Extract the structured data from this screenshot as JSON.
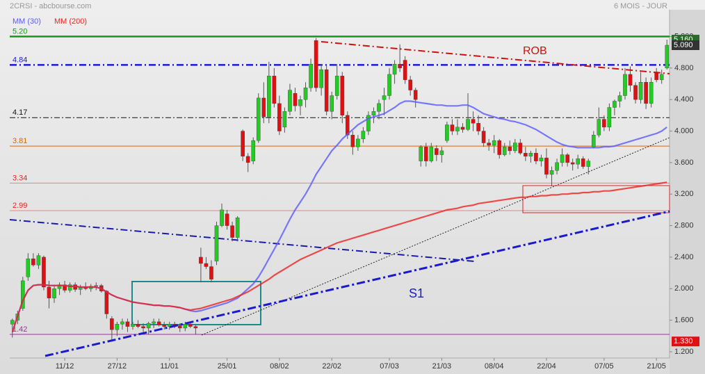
{
  "chart_data": {
    "type": "candlestick",
    "title": "2CRSI - abcbourse.com",
    "subtitle": "6 MOIS - JOUR",
    "up_color": "#22cc22",
    "down_color": "#dd1111",
    "categories": [
      null,
      null,
      null,
      null,
      null,
      null,
      null,
      null,
      null,
      null,
      "11/12",
      null,
      null,
      null,
      null,
      null,
      null,
      null,
      null,
      null,
      "27/12",
      null,
      null,
      null,
      null,
      null,
      null,
      null,
      null,
      null,
      "11/01",
      null,
      null,
      null,
      null,
      null,
      null,
      null,
      null,
      null,
      null,
      "25/01",
      null,
      null,
      null,
      null,
      null,
      null,
      null,
      null,
      null,
      "08/02",
      null,
      null,
      null,
      null,
      null,
      null,
      null,
      null,
      null,
      "22/02",
      null,
      null,
      null,
      null,
      null,
      null,
      null,
      null,
      null,
      null,
      "07/03",
      null,
      null,
      null,
      null,
      null,
      null,
      null,
      null,
      null,
      "21/03",
      null,
      null,
      null,
      null,
      null,
      null,
      null,
      null,
      null,
      "08/04",
      null,
      null,
      null,
      null,
      null,
      null,
      null,
      null,
      null,
      "22/04",
      null,
      null,
      null,
      null,
      null,
      null,
      null,
      null,
      null,
      null,
      "07/05",
      null,
      null,
      null,
      null,
      null,
      null,
      null,
      null,
      null,
      "21/05",
      null,
      null
    ],
    "open": [
      1.55,
      1.6,
      1.75,
      2.15,
      2.38,
      2.3,
      2.4,
      2.02,
      1.88,
      2.0,
      2.05,
      1.98,
      2.05,
      1.99,
      2.02,
      2.0,
      2.03,
      2.04,
      1.97,
      1.62,
      1.48,
      1.55,
      1.58,
      1.52,
      1.55,
      1.52,
      1.5,
      1.56,
      1.58,
      1.54,
      1.52,
      1.55,
      1.53,
      1.5,
      1.55,
      1.52,
      2.4,
      2.32,
      2.28,
      2.35,
      2.8,
      2.95,
      2.8,
      2.65,
      4.0,
      3.68,
      3.62,
      3.88,
      4.42,
      4.18,
      4.7,
      4.35,
      4.05,
      4.25,
      4.48,
      4.32,
      4.4,
      4.55,
      5.15,
      4.55,
      4.78,
      4.25,
      4.45,
      4.7,
      4.2,
      3.95,
      3.8,
      3.9,
      4.0,
      4.2,
      4.25,
      4.4,
      4.45,
      4.72,
      4.85,
      4.9,
      4.65,
      4.52,
      3.62,
      3.8,
      3.62,
      3.78,
      3.7,
      3.88,
      4.08,
      4.0,
      4.05,
      4.02,
      4.15,
      4.1,
      4.0,
      3.85,
      3.82,
      3.88,
      3.7,
      3.8,
      3.75,
      3.85,
      3.72,
      3.68,
      3.72,
      3.62,
      3.66,
      3.45,
      3.5,
      3.6,
      3.7,
      3.6,
      3.58,
      3.65,
      3.55,
      3.8,
      3.95,
      4.15,
      4.05,
      4.3,
      4.38,
      4.45,
      4.72,
      4.58,
      4.4,
      4.62,
      4.35,
      4.75,
      4.65,
      4.8
    ],
    "high": [
      1.62,
      1.72,
      2.15,
      2.45,
      2.45,
      2.45,
      2.42,
      2.1,
      2.05,
      2.08,
      2.1,
      2.08,
      2.08,
      2.05,
      2.08,
      2.06,
      2.08,
      2.06,
      1.98,
      1.65,
      1.58,
      1.62,
      1.62,
      1.58,
      1.6,
      1.56,
      1.58,
      1.62,
      1.62,
      1.58,
      1.58,
      1.58,
      1.56,
      1.58,
      1.58,
      1.55,
      2.52,
      2.4,
      2.36,
      2.85,
      3.08,
      3.0,
      2.85,
      2.92,
      4.02,
      3.72,
      3.92,
      4.48,
      4.62,
      4.88,
      4.8,
      4.45,
      4.3,
      4.6,
      4.55,
      4.45,
      4.62,
      4.92,
      5.18,
      4.85,
      4.85,
      4.5,
      4.85,
      4.75,
      4.25,
      4.0,
      3.95,
      4.05,
      4.25,
      4.3,
      4.4,
      4.55,
      4.8,
      4.9,
      5.1,
      4.95,
      4.7,
      4.55,
      3.82,
      3.85,
      3.85,
      3.82,
      3.8,
      4.12,
      4.15,
      4.15,
      4.1,
      4.48,
      4.25,
      4.2,
      4.05,
      3.9,
      3.95,
      3.9,
      3.85,
      3.88,
      3.9,
      3.9,
      3.8,
      3.75,
      3.78,
      3.7,
      3.78,
      3.55,
      3.65,
      3.78,
      3.72,
      3.65,
      3.7,
      3.68,
      3.65,
      4.0,
      4.3,
      4.2,
      4.35,
      4.4,
      4.5,
      4.8,
      4.82,
      4.62,
      4.75,
      4.68,
      4.68,
      4.8,
      4.78,
      5.16
    ],
    "low": [
      1.38,
      1.55,
      1.72,
      2.1,
      2.28,
      2.25,
      1.98,
      1.75,
      1.82,
      1.92,
      1.95,
      1.95,
      1.96,
      1.92,
      1.98,
      1.96,
      1.98,
      1.95,
      1.62,
      1.33,
      1.4,
      1.48,
      1.45,
      1.48,
      1.5,
      1.45,
      1.42,
      1.5,
      1.52,
      1.48,
      1.48,
      1.5,
      1.45,
      1.46,
      1.5,
      1.42,
      2.08,
      2.25,
      2.08,
      2.3,
      2.78,
      2.75,
      2.6,
      2.6,
      3.62,
      3.48,
      3.58,
      3.85,
      4.1,
      4.1,
      4.3,
      3.95,
      3.98,
      4.2,
      4.25,
      4.2,
      4.3,
      4.5,
      4.5,
      4.45,
      4.2,
      4.15,
      4.4,
      4.1,
      3.9,
      3.7,
      3.75,
      3.85,
      3.95,
      4.1,
      4.15,
      4.2,
      4.4,
      4.6,
      4.75,
      4.6,
      4.45,
      4.3,
      3.55,
      3.55,
      3.6,
      3.62,
      3.6,
      3.85,
      3.95,
      3.95,
      3.98,
      4.0,
      4.0,
      3.95,
      3.8,
      3.75,
      3.72,
      3.65,
      3.68,
      3.7,
      3.72,
      3.7,
      3.62,
      3.6,
      3.58,
      3.55,
      3.4,
      3.3,
      3.45,
      3.55,
      3.55,
      3.5,
      3.52,
      3.52,
      3.45,
      3.78,
      3.92,
      4.0,
      4.0,
      4.2,
      4.3,
      4.4,
      4.5,
      4.35,
      4.35,
      4.28,
      4.3,
      4.62,
      4.6,
      4.78
    ],
    "close": [
      1.6,
      1.68,
      2.1,
      2.38,
      2.3,
      2.42,
      2.02,
      1.88,
      2.0,
      2.05,
      1.98,
      2.05,
      1.99,
      2.02,
      2.0,
      2.03,
      2.04,
      1.97,
      1.68,
      1.48,
      1.55,
      1.58,
      1.52,
      1.55,
      1.52,
      1.5,
      1.56,
      1.58,
      1.54,
      1.52,
      1.55,
      1.53,
      1.5,
      1.55,
      1.52,
      1.5,
      2.32,
      2.28,
      2.12,
      2.8,
      3.0,
      2.8,
      2.65,
      2.9,
      3.68,
      3.6,
      3.88,
      4.42,
      4.18,
      4.7,
      4.35,
      4.0,
      4.25,
      4.52,
      4.32,
      4.4,
      4.55,
      4.85,
      4.55,
      4.78,
      4.25,
      4.45,
      4.7,
      4.2,
      3.95,
      3.8,
      3.9,
      4.0,
      4.2,
      4.25,
      4.35,
      4.45,
      4.72,
      4.85,
      4.8,
      4.65,
      4.52,
      4.4,
      3.8,
      3.62,
      3.8,
      3.7,
      3.75,
      4.08,
      4.0,
      4.05,
      4.02,
      4.15,
      4.1,
      4.0,
      3.85,
      3.82,
      3.88,
      3.7,
      3.8,
      3.75,
      3.85,
      3.72,
      3.68,
      3.72,
      3.62,
      3.66,
      3.45,
      3.5,
      3.6,
      3.7,
      3.6,
      3.58,
      3.65,
      3.55,
      3.62,
      3.95,
      4.15,
      4.05,
      4.3,
      4.38,
      4.45,
      4.72,
      4.58,
      4.4,
      4.62,
      4.35,
      4.62,
      4.65,
      4.72,
      5.09
    ],
    "series": [
      {
        "name": "MM (30)",
        "color": "#5a5aff",
        "values": [
          1.45,
          1.65,
          1.85,
          1.98,
          2.04,
          2.05,
          2.05,
          2.04,
          2.04,
          2.04,
          2.04,
          2.03,
          2.03,
          2.02,
          2.02,
          2.02,
          2.02,
          2.0,
          1.96,
          1.92,
          1.89,
          1.87,
          1.85,
          1.83,
          1.82,
          1.81,
          1.8,
          1.79,
          1.79,
          1.78,
          1.78,
          1.77,
          1.76,
          1.74,
          1.72,
          1.71,
          1.72,
          1.74,
          1.76,
          1.78,
          1.8,
          1.82,
          1.85,
          1.88,
          1.94,
          2.0,
          2.06,
          2.15,
          2.26,
          2.38,
          2.5,
          2.62,
          2.75,
          2.88,
          3.0,
          3.1,
          3.2,
          3.32,
          3.45,
          3.55,
          3.65,
          3.75,
          3.82,
          3.9,
          3.96,
          4.02,
          4.08,
          4.12,
          4.16,
          4.18,
          4.2,
          4.22,
          4.26,
          4.3,
          4.35,
          4.38,
          4.38,
          4.37,
          4.36,
          4.35,
          4.34,
          4.33,
          4.33,
          4.32,
          4.32,
          4.32,
          4.33,
          4.33,
          4.3,
          4.26,
          4.22,
          4.2,
          4.18,
          4.16,
          4.15,
          4.13,
          4.12,
          4.1,
          4.08,
          4.05,
          4.02,
          3.98,
          3.94,
          3.9,
          3.86,
          3.83,
          3.81,
          3.8,
          3.79,
          3.79,
          3.79,
          3.79,
          3.79,
          3.8,
          3.8,
          3.81,
          3.83,
          3.85,
          3.87,
          3.89,
          3.91,
          3.93,
          3.95,
          3.97,
          4.0,
          4.05
        ]
      },
      {
        "name": "MM (200)",
        "color": "#ee2222",
        "values": [
          1.45,
          1.65,
          1.85,
          1.98,
          2.04,
          2.05,
          2.05,
          2.04,
          2.04,
          2.04,
          2.04,
          2.03,
          2.03,
          2.02,
          2.02,
          2.02,
          2.02,
          2.0,
          1.96,
          1.92,
          1.89,
          1.87,
          1.85,
          1.83,
          1.82,
          1.81,
          1.8,
          1.79,
          1.79,
          1.78,
          1.78,
          1.77,
          1.76,
          1.74,
          1.73,
          1.74,
          1.75,
          1.77,
          1.79,
          1.81,
          1.83,
          1.85,
          1.87,
          1.9,
          1.93,
          1.96,
          2.0,
          2.04,
          2.08,
          2.12,
          2.17,
          2.21,
          2.25,
          2.29,
          2.33,
          2.37,
          2.4,
          2.43,
          2.46,
          2.49,
          2.52,
          2.55,
          2.58,
          2.6,
          2.62,
          2.64,
          2.66,
          2.68,
          2.7,
          2.72,
          2.74,
          2.76,
          2.78,
          2.8,
          2.82,
          2.84,
          2.86,
          2.88,
          2.9,
          2.92,
          2.94,
          2.96,
          2.98,
          3.0,
          3.01,
          3.02,
          3.04,
          3.05,
          3.06,
          3.08,
          3.09,
          3.1,
          3.11,
          3.12,
          3.13,
          3.14,
          3.15,
          3.16,
          3.16,
          3.17,
          3.17,
          3.18,
          3.18,
          3.19,
          3.19,
          3.2,
          3.2,
          3.21,
          3.21,
          3.22,
          3.22,
          3.23,
          3.23,
          3.24,
          3.24,
          3.25,
          3.26,
          3.27,
          3.28,
          3.29,
          3.3,
          3.31,
          3.32,
          3.33,
          3.34,
          3.35
        ]
      }
    ],
    "ylim": [
      1.12,
      5.54
    ],
    "yticks": [
      {
        "value": 1.2,
        "label": "1.200"
      },
      {
        "value": 1.6,
        "label": "1.600"
      },
      {
        "value": 2.0,
        "label": "2.000"
      },
      {
        "value": 2.4,
        "label": "2.400"
      },
      {
        "value": 2.8,
        "label": "2.800"
      },
      {
        "value": 3.2,
        "label": "3.200"
      },
      {
        "value": 3.6,
        "label": "3.600"
      },
      {
        "value": 4.0,
        "label": "4.000"
      },
      {
        "value": 4.4,
        "label": "4.400"
      },
      {
        "value": 4.8,
        "label": "4.800"
      },
      {
        "value": 5.2,
        "label": "5.200"
      }
    ],
    "levels": [
      {
        "value": 5.2,
        "label": "5.20",
        "color": "#119911",
        "style": "thick"
      },
      {
        "value": 4.84,
        "label": "4.84",
        "color": "#1a1add",
        "style": "dashdot-thick"
      },
      {
        "value": 4.17,
        "label": "4.17",
        "color": "#111111",
        "style": "dashdot"
      },
      {
        "value": 3.81,
        "label": "3.81",
        "color": "#cc6a10",
        "style": "solid"
      },
      {
        "value": 3.34,
        "label": "3.34",
        "color": "#ee2222",
        "style": "faint"
      },
      {
        "value": 2.99,
        "label": "2.99",
        "color": "#ee2222",
        "style": "faint"
      },
      {
        "value": 1.42,
        "label": "1.42",
        "color": "#993399",
        "style": "solid"
      }
    ],
    "price_tags": [
      {
        "value": 5.16,
        "label": "5.160",
        "color": "#2a6a2a"
      },
      {
        "value": 5.09,
        "label": "5.090",
        "color": "#333333"
      },
      {
        "value": 1.33,
        "label": "1.330",
        "color": "#dd1111"
      }
    ],
    "annotations": [
      {
        "text": "ROB",
        "color": "#cc1111"
      },
      {
        "text": "S1",
        "color": "#1a1acc"
      }
    ]
  }
}
